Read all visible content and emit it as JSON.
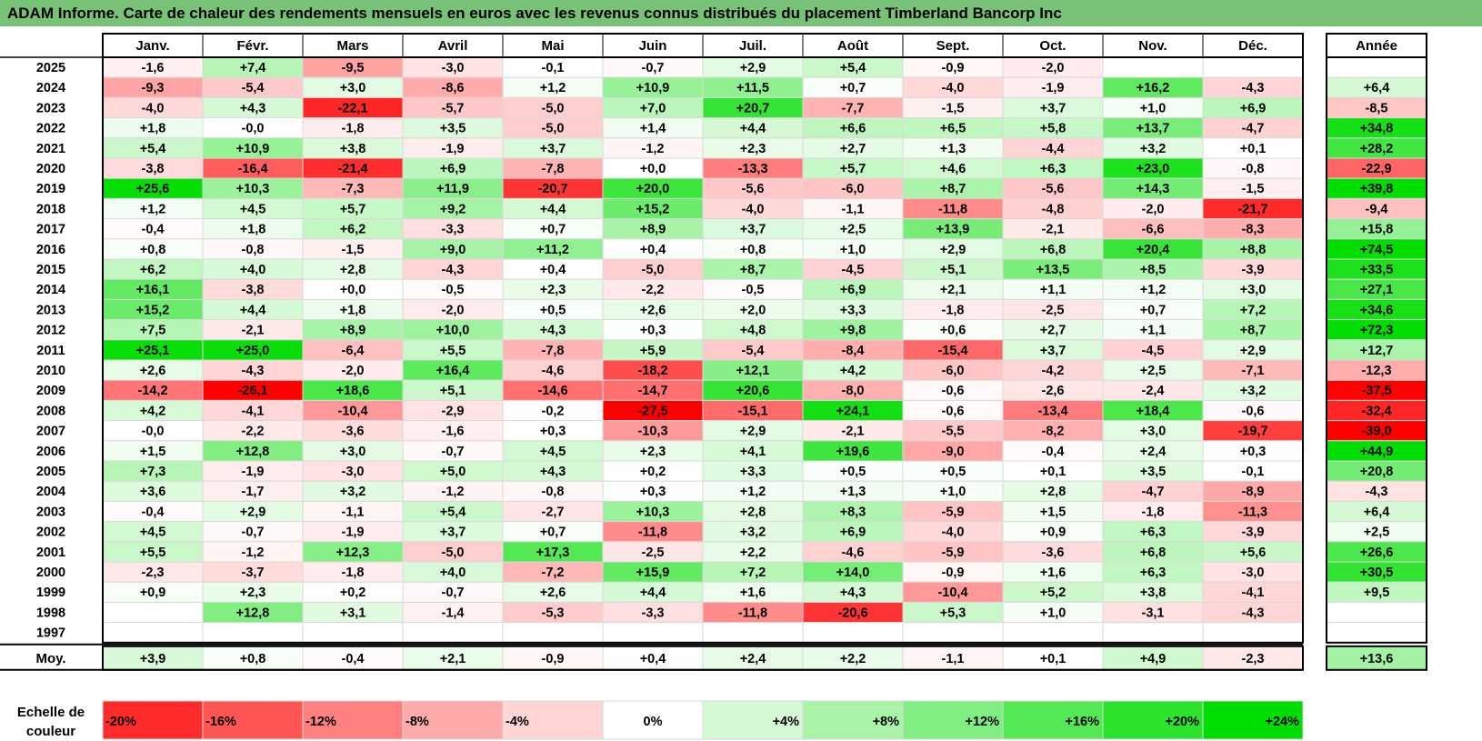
{
  "title": "ADAM Informe. Carte de chaleur des rendements mensuels en euros avec les revenus connus distribués du placement Timberland Bancorp Inc",
  "chart_data": {
    "type": "heatmap",
    "months": [
      "Janv.",
      "Févr.",
      "Mars",
      "Avril",
      "Mai",
      "Juin",
      "Juil.",
      "Août",
      "Sept.",
      "Oct.",
      "Nov.",
      "Déc."
    ],
    "annual_header": "Année",
    "avg_label": "Moy.",
    "rows": [
      {
        "year": "2025",
        "values": [
          "-1,6",
          "+7,4",
          "-9,5",
          "-3,0",
          "-0,1",
          "-0,7",
          "+2,9",
          "+5,4",
          "-0,9",
          "-2,0",
          "",
          ""
        ],
        "annual": ""
      },
      {
        "year": "2024",
        "values": [
          "-9,3",
          "-5,4",
          "+3,0",
          "-8,6",
          "+1,2",
          "+10,9",
          "+11,5",
          "+0,7",
          "-4,0",
          "-1,9",
          "+16,2",
          "-4,3"
        ],
        "annual": "+6,4"
      },
      {
        "year": "2023",
        "values": [
          "-4,0",
          "+4,3",
          "-22,1",
          "-5,7",
          "-5,0",
          "+7,0",
          "+20,7",
          "-7,7",
          "-1,5",
          "+3,7",
          "+1,0",
          "+6,9"
        ],
        "annual": "-8,5"
      },
      {
        "year": "2022",
        "values": [
          "+1,8",
          "-0,0",
          "-1,8",
          "+3,5",
          "-5,0",
          "+1,4",
          "+4,4",
          "+6,6",
          "+6,5",
          "+5,8",
          "+13,7",
          "-4,7"
        ],
        "annual": "+34,8"
      },
      {
        "year": "2021",
        "values": [
          "+5,4",
          "+10,9",
          "+3,8",
          "-1,9",
          "+3,7",
          "-1,2",
          "+2,3",
          "+2,7",
          "+1,3",
          "-4,4",
          "+3,2",
          "+0,1"
        ],
        "annual": "+28,2"
      },
      {
        "year": "2020",
        "values": [
          "-3,8",
          "-16,4",
          "-21,4",
          "+6,9",
          "-7,8",
          "+0,0",
          "-13,3",
          "+5,7",
          "+4,6",
          "+6,3",
          "+23,0",
          "-0,8"
        ],
        "annual": "-22,9"
      },
      {
        "year": "2019",
        "values": [
          "+25,6",
          "+10,3",
          "-7,3",
          "+11,9",
          "-20,7",
          "+20,0",
          "-5,6",
          "-6,0",
          "+8,7",
          "-5,6",
          "+14,3",
          "-1,5"
        ],
        "annual": "+39,8"
      },
      {
        "year": "2018",
        "values": [
          "+1,2",
          "+4,5",
          "+5,7",
          "+9,2",
          "+4,4",
          "+15,2",
          "-4,0",
          "-1,1",
          "-11,8",
          "-4,8",
          "-2,0",
          "-21,7"
        ],
        "annual": "-9,4"
      },
      {
        "year": "2017",
        "values": [
          "-0,4",
          "+1,8",
          "+6,2",
          "-3,3",
          "+0,7",
          "+8,9",
          "+3,7",
          "+2,5",
          "+13,9",
          "-2,1",
          "-6,6",
          "-8,3"
        ],
        "annual": "+15,8"
      },
      {
        "year": "2016",
        "values": [
          "+0,8",
          "-0,8",
          "-1,5",
          "+9,0",
          "+11,2",
          "+0,4",
          "+0,8",
          "+1,0",
          "+2,9",
          "+6,8",
          "+20,4",
          "+8,8"
        ],
        "annual": "+74,5"
      },
      {
        "year": "2015",
        "values": [
          "+6,2",
          "+4,0",
          "+2,8",
          "-4,3",
          "+0,4",
          "-5,0",
          "+8,7",
          "-4,5",
          "+5,1",
          "+13,5",
          "+8,5",
          "-3,9"
        ],
        "annual": "+33,5"
      },
      {
        "year": "2014",
        "values": [
          "+16,1",
          "-3,8",
          "+0,0",
          "-0,5",
          "+2,3",
          "-2,2",
          "-0,5",
          "+6,9",
          "+2,1",
          "+1,1",
          "+1,2",
          "+3,0"
        ],
        "annual": "+27,1"
      },
      {
        "year": "2013",
        "values": [
          "+15,2",
          "+4,4",
          "+1,8",
          "-2,0",
          "+0,5",
          "+2,6",
          "+2,0",
          "+3,3",
          "-1,8",
          "-2,5",
          "+0,7",
          "+7,2"
        ],
        "annual": "+34,6"
      },
      {
        "year": "2012",
        "values": [
          "+7,5",
          "-2,1",
          "+8,9",
          "+10,0",
          "+4,3",
          "+0,3",
          "+4,8",
          "+9,8",
          "+0,6",
          "+2,7",
          "+1,1",
          "+8,7"
        ],
        "annual": "+72,3"
      },
      {
        "year": "2011",
        "values": [
          "+25,1",
          "+25,0",
          "-6,4",
          "+5,5",
          "-7,8",
          "+5,9",
          "-5,4",
          "-8,4",
          "-15,4",
          "+3,7",
          "-4,5",
          "+2,9"
        ],
        "annual": "+12,7"
      },
      {
        "year": "2010",
        "values": [
          "+2,6",
          "-4,3",
          "-2,0",
          "+16,4",
          "-4,6",
          "-18,2",
          "+12,1",
          "+4,2",
          "-6,0",
          "-4,2",
          "+2,5",
          "-7,1"
        ],
        "annual": "-12,3"
      },
      {
        "year": "2009",
        "values": [
          "-14,2",
          "-26,1",
          "+18,6",
          "+5,1",
          "-14,6",
          "-14,7",
          "+20,6",
          "-8,0",
          "-0,6",
          "-2,6",
          "-2,4",
          "+3,2"
        ],
        "annual": "-37,5"
      },
      {
        "year": "2008",
        "values": [
          "+4,2",
          "-4,1",
          "-10,4",
          "-2,9",
          "-0,2",
          "-27,5",
          "-15,1",
          "+24,1",
          "-0,6",
          "-13,4",
          "+18,4",
          "-0,6"
        ],
        "annual": "-32,4"
      },
      {
        "year": "2007",
        "values": [
          "-0,0",
          "-2,2",
          "-3,6",
          "-1,6",
          "+0,3",
          "-10,3",
          "+2,9",
          "-2,1",
          "-5,5",
          "-8,2",
          "+3,0",
          "-19,7"
        ],
        "annual": "-39,0"
      },
      {
        "year": "2006",
        "values": [
          "+1,5",
          "+12,8",
          "+3,0",
          "-0,7",
          "+4,5",
          "+2,3",
          "+4,1",
          "+19,6",
          "-9,0",
          "-0,4",
          "+2,4",
          "+0,3"
        ],
        "annual": "+44,9"
      },
      {
        "year": "2005",
        "values": [
          "+7,3",
          "-1,9",
          "-3,0",
          "+5,0",
          "+4,3",
          "+0,2",
          "+3,3",
          "+0,5",
          "+0,5",
          "+0,1",
          "+3,5",
          "-0,1"
        ],
        "annual": "+20,8"
      },
      {
        "year": "2004",
        "values": [
          "+3,6",
          "-1,7",
          "+3,2",
          "-1,2",
          "-0,8",
          "+0,3",
          "+1,2",
          "+1,3",
          "+1,0",
          "+2,8",
          "-4,7",
          "-8,9"
        ],
        "annual": "-4,3"
      },
      {
        "year": "2003",
        "values": [
          "-0,4",
          "+2,9",
          "-1,1",
          "+5,4",
          "-2,7",
          "+10,3",
          "+2,8",
          "+8,3",
          "-5,9",
          "+1,5",
          "-1,8",
          "-11,3"
        ],
        "annual": "+6,4"
      },
      {
        "year": "2002",
        "values": [
          "+4,5",
          "-0,7",
          "-1,9",
          "+3,7",
          "+0,7",
          "-11,8",
          "+3,2",
          "+6,9",
          "-4,0",
          "+0,9",
          "+6,3",
          "-3,9"
        ],
        "annual": "+2,5"
      },
      {
        "year": "2001",
        "values": [
          "+5,5",
          "-1,2",
          "+12,3",
          "-5,0",
          "+17,3",
          "-2,5",
          "+2,2",
          "-4,6",
          "-5,9",
          "-3,6",
          "+6,8",
          "+5,6"
        ],
        "annual": "+26,6"
      },
      {
        "year": "2000",
        "values": [
          "-2,3",
          "-3,7",
          "-1,8",
          "+4,0",
          "-7,2",
          "+15,9",
          "+7,2",
          "+14,0",
          "-0,9",
          "+1,6",
          "+6,3",
          "-3,0"
        ],
        "annual": "+30,5"
      },
      {
        "year": "1999",
        "values": [
          "+0,9",
          "+2,3",
          "+0,2",
          "-0,7",
          "+2,6",
          "+4,4",
          "+1,6",
          "+4,3",
          "-10,4",
          "+5,2",
          "+3,8",
          "-4,1"
        ],
        "annual": "+9,5"
      },
      {
        "year": "1998",
        "values": [
          "",
          "+12,8",
          "+3,1",
          "-1,4",
          "-5,3",
          "-3,3",
          "-11,8",
          "-20,6",
          "+5,3",
          "+1,0",
          "-3,1",
          "-4,3"
        ],
        "annual": ""
      },
      {
        "year": "1997",
        "values": [
          "",
          "",
          "",
          "",
          "",
          "",
          "",
          "",
          "",
          "",
          "",
          ""
        ],
        "annual": ""
      }
    ],
    "average": {
      "values": [
        "+3,9",
        "+0,8",
        "-0,4",
        "+2,1",
        "-0,9",
        "+0,4",
        "+2,4",
        "+2,2",
        "-1,1",
        "+0,1",
        "+4,9",
        "-2,3"
      ],
      "annual": "+13,6"
    },
    "scale_label": [
      "Echelle de",
      "couleur"
    ],
    "scale": [
      "-20%",
      "-16%",
      "-12%",
      "-8%",
      "-4%",
      "0%",
      "+4%",
      "+8%",
      "+12%",
      "+16%",
      "+20%",
      "+24%"
    ],
    "colors": {
      "negative": "#ff0000",
      "positive": "#00dd00",
      "neutral": "#ffffff",
      "title_bg": "#77c277"
    }
  }
}
